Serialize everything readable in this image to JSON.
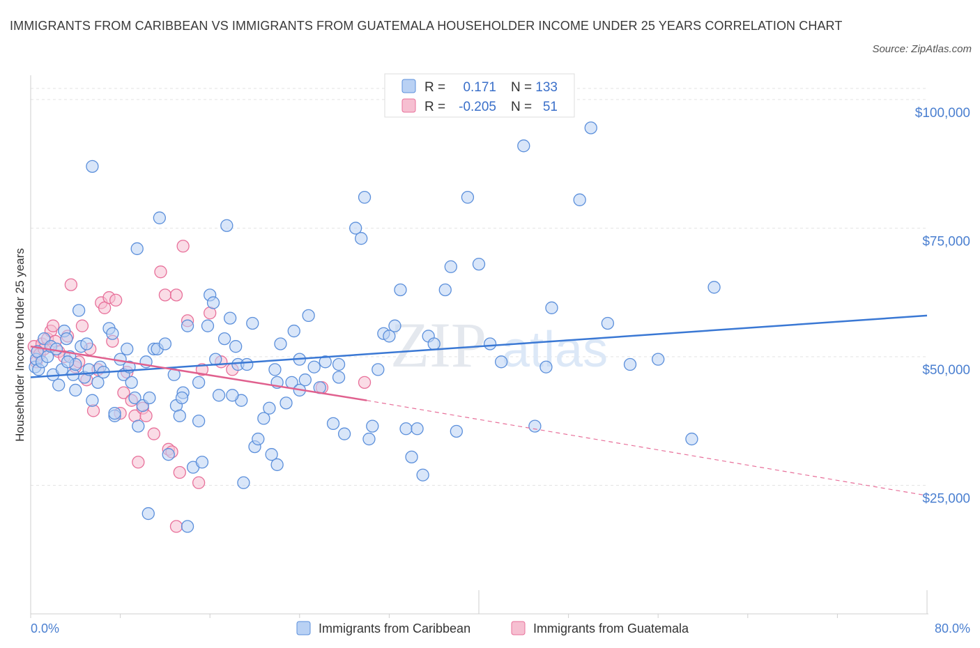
{
  "title": "IMMIGRANTS FROM CARIBBEAN VS IMMIGRANTS FROM GUATEMALA HOUSEHOLDER INCOME UNDER 25 YEARS CORRELATION CHART",
  "source": "Source: ZipAtlas.com",
  "watermark": {
    "zip": "ZIP",
    "atlas": "atlas"
  },
  "colors": {
    "blue": "#5b8fdb",
    "blue_fill": "#b9d1f4",
    "pink": "#e8709a",
    "pink_fill": "#f6bfd1",
    "axis_text": "#4a7fd0"
  },
  "legend": {
    "r_label": "R =",
    "n_label": "N =",
    "rows": [
      {
        "r": "0.171",
        "n": "133"
      },
      {
        "r": "-0.205",
        "n": "51"
      }
    ]
  },
  "chart_data": {
    "type": "scatter",
    "title": "IMMIGRANTS FROM CARIBBEAN VS IMMIGRANTS FROM GUATEMALA HOUSEHOLDER INCOME UNDER 25 YEARS CORRELATION CHART",
    "xlabel": "",
    "ylabel": "Householder Income Under 25 years",
    "xlim": [
      0,
      80
    ],
    "ylim": [
      0,
      105000
    ],
    "x_tick_labels": [
      "0.0%",
      "80.0%"
    ],
    "y_ticks": [
      25000,
      50000,
      75000,
      100000
    ],
    "y_tick_labels": [
      "$25,000",
      "$50,000",
      "$75,000",
      "$100,000"
    ],
    "grid": "horizontal dashed",
    "legend_position": "top-center",
    "series": [
      {
        "name": "Immigrants from Caribbean",
        "r": 0.171,
        "n": 133,
        "trend": {
          "x": [
            0,
            80
          ],
          "y": [
            46000,
            58000
          ]
        },
        "points": [
          [
            0.4,
            48000
          ],
          [
            0.5,
            49500
          ],
          [
            0.6,
            51000
          ],
          [
            0.7,
            47500
          ],
          [
            1.0,
            49000
          ],
          [
            1.2,
            53500
          ],
          [
            1.5,
            50000
          ],
          [
            1.8,
            52000
          ],
          [
            2.0,
            46500
          ],
          [
            2.3,
            51500
          ],
          [
            2.5,
            44500
          ],
          [
            2.8,
            47500
          ],
          [
            3.0,
            55000
          ],
          [
            3.2,
            53500
          ],
          [
            3.5,
            50000
          ],
          [
            3.8,
            46500
          ],
          [
            4.0,
            43500
          ],
          [
            4.3,
            59000
          ],
          [
            4.5,
            52000
          ],
          [
            4.8,
            46000
          ],
          [
            5.0,
            52500
          ],
          [
            5.2,
            47500
          ],
          [
            5.5,
            41500
          ],
          [
            6.0,
            45000
          ],
          [
            6.2,
            48000
          ],
          [
            7.0,
            55500
          ],
          [
            7.3,
            54500
          ],
          [
            7.5,
            38500
          ],
          [
            8.0,
            49500
          ],
          [
            8.3,
            46500
          ],
          [
            8.6,
            51500
          ],
          [
            9.0,
            45000
          ],
          [
            9.3,
            42000
          ],
          [
            9.6,
            36500
          ],
          [
            10.0,
            40500
          ],
          [
            10.3,
            49000
          ],
          [
            10.6,
            42000
          ],
          [
            11.0,
            51500
          ],
          [
            11.3,
            51500
          ],
          [
            12.0,
            52500
          ],
          [
            12.3,
            31000
          ],
          [
            13.0,
            40500
          ],
          [
            13.3,
            38500
          ],
          [
            13.6,
            43000
          ],
          [
            14.0,
            56000
          ],
          [
            14.5,
            28500
          ],
          [
            15.0,
            45000
          ],
          [
            15.3,
            29500
          ],
          [
            15.8,
            56000
          ],
          [
            16.0,
            62000
          ],
          [
            16.3,
            60500
          ],
          [
            16.8,
            42500
          ],
          [
            17.3,
            53500
          ],
          [
            17.8,
            57500
          ],
          [
            18.3,
            52000
          ],
          [
            18.5,
            48500
          ],
          [
            18.8,
            41500
          ],
          [
            19.3,
            48500
          ],
          [
            19.8,
            56500
          ],
          [
            20.0,
            32500
          ],
          [
            20.3,
            34000
          ],
          [
            20.8,
            38000
          ],
          [
            21.3,
            40000
          ],
          [
            21.8,
            47500
          ],
          [
            22.0,
            45000
          ],
          [
            22.3,
            52500
          ],
          [
            22.8,
            41000
          ],
          [
            23.3,
            45000
          ],
          [
            23.5,
            55000
          ],
          [
            24.0,
            49500
          ],
          [
            24.5,
            45500
          ],
          [
            24.8,
            58000
          ],
          [
            25.3,
            48000
          ],
          [
            25.8,
            44000
          ],
          [
            26.3,
            49000
          ],
          [
            27.0,
            37000
          ],
          [
            27.5,
            48500
          ],
          [
            28.0,
            35000
          ],
          [
            29.0,
            75000
          ],
          [
            29.5,
            73000
          ],
          [
            29.8,
            81000
          ],
          [
            30.2,
            34000
          ],
          [
            30.5,
            36500
          ],
          [
            31.0,
            47500
          ],
          [
            31.5,
            54500
          ],
          [
            32.0,
            54000
          ],
          [
            32.5,
            56000
          ],
          [
            33.0,
            63000
          ],
          [
            33.5,
            36000
          ],
          [
            34.0,
            30500
          ],
          [
            34.5,
            36000
          ],
          [
            35.0,
            27000
          ],
          [
            35.5,
            54000
          ],
          [
            36.0,
            52500
          ],
          [
            37.0,
            63000
          ],
          [
            37.5,
            67500
          ],
          [
            38.0,
            35500
          ],
          [
            39.0,
            81000
          ],
          [
            40.0,
            68000
          ],
          [
            41.0,
            52500
          ],
          [
            42.0,
            49000
          ],
          [
            44.0,
            91000
          ],
          [
            45.0,
            36500
          ],
          [
            46.0,
            48000
          ],
          [
            46.5,
            59500
          ],
          [
            49.0,
            80500
          ],
          [
            50.0,
            94500
          ],
          [
            51.5,
            56500
          ],
          [
            53.5,
            48500
          ],
          [
            56.0,
            49500
          ],
          [
            59.0,
            34000
          ],
          [
            61.0,
            63500
          ],
          [
            5.5,
            87000
          ],
          [
            9.5,
            71000
          ],
          [
            11.5,
            77000
          ],
          [
            17.5,
            75500
          ],
          [
            7.5,
            39000
          ],
          [
            13.5,
            42000
          ],
          [
            15.0,
            37500
          ],
          [
            21.5,
            31000
          ],
          [
            22.0,
            29000
          ],
          [
            19.0,
            25500
          ],
          [
            10.5,
            19500
          ],
          [
            14.0,
            17000
          ],
          [
            4.0,
            48500
          ],
          [
            3.3,
            49000
          ],
          [
            6.5,
            47000
          ],
          [
            8.8,
            48000
          ],
          [
            12.8,
            46500
          ],
          [
            16.5,
            49500
          ],
          [
            18.0,
            42500
          ],
          [
            24.0,
            43500
          ],
          [
            27.5,
            46000
          ]
        ]
      },
      {
        "name": "Immigrants from Guatemala",
        "r": -0.205,
        "n": 51,
        "trend": {
          "x": [
            0,
            30
          ],
          "y": [
            52000,
            41500
          ],
          "dashed_extension": {
            "x": [
              30,
              80
            ],
            "y": [
              41500,
              23000
            ]
          }
        },
        "points": [
          [
            0.3,
            52000
          ],
          [
            0.5,
            49000
          ],
          [
            0.6,
            51000
          ],
          [
            0.8,
            50500
          ],
          [
            1.0,
            52500
          ],
          [
            1.2,
            51500
          ],
          [
            1.5,
            53500
          ],
          [
            1.8,
            55000
          ],
          [
            2.0,
            56000
          ],
          [
            2.2,
            53000
          ],
          [
            2.5,
            51000
          ],
          [
            3.0,
            50000
          ],
          [
            3.3,
            54000
          ],
          [
            3.6,
            64000
          ],
          [
            4.0,
            48000
          ],
          [
            4.3,
            49000
          ],
          [
            4.6,
            56000
          ],
          [
            5.0,
            45500
          ],
          [
            5.3,
            51500
          ],
          [
            5.6,
            39500
          ],
          [
            6.0,
            47500
          ],
          [
            6.3,
            60500
          ],
          [
            6.6,
            59500
          ],
          [
            7.0,
            61500
          ],
          [
            7.3,
            53000
          ],
          [
            7.6,
            61000
          ],
          [
            8.0,
            39000
          ],
          [
            8.3,
            43000
          ],
          [
            8.6,
            47000
          ],
          [
            9.0,
            41500
          ],
          [
            9.3,
            38500
          ],
          [
            9.6,
            29500
          ],
          [
            10.0,
            40000
          ],
          [
            10.3,
            38500
          ],
          [
            11.0,
            35000
          ],
          [
            11.6,
            66500
          ],
          [
            12.0,
            62000
          ],
          [
            12.3,
            32000
          ],
          [
            12.6,
            31500
          ],
          [
            13.0,
            62000
          ],
          [
            13.3,
            27500
          ],
          [
            13.6,
            71500
          ],
          [
            14.0,
            57000
          ],
          [
            15.0,
            25500
          ],
          [
            15.3,
            47500
          ],
          [
            16.0,
            58500
          ],
          [
            17.0,
            49000
          ],
          [
            18.0,
            47500
          ],
          [
            13.0,
            17000
          ],
          [
            29.8,
            45000
          ],
          [
            26.0,
            44000
          ]
        ]
      }
    ]
  },
  "bottom_legend": [
    "Immigrants from Caribbean",
    "Immigrants from Guatemala"
  ]
}
